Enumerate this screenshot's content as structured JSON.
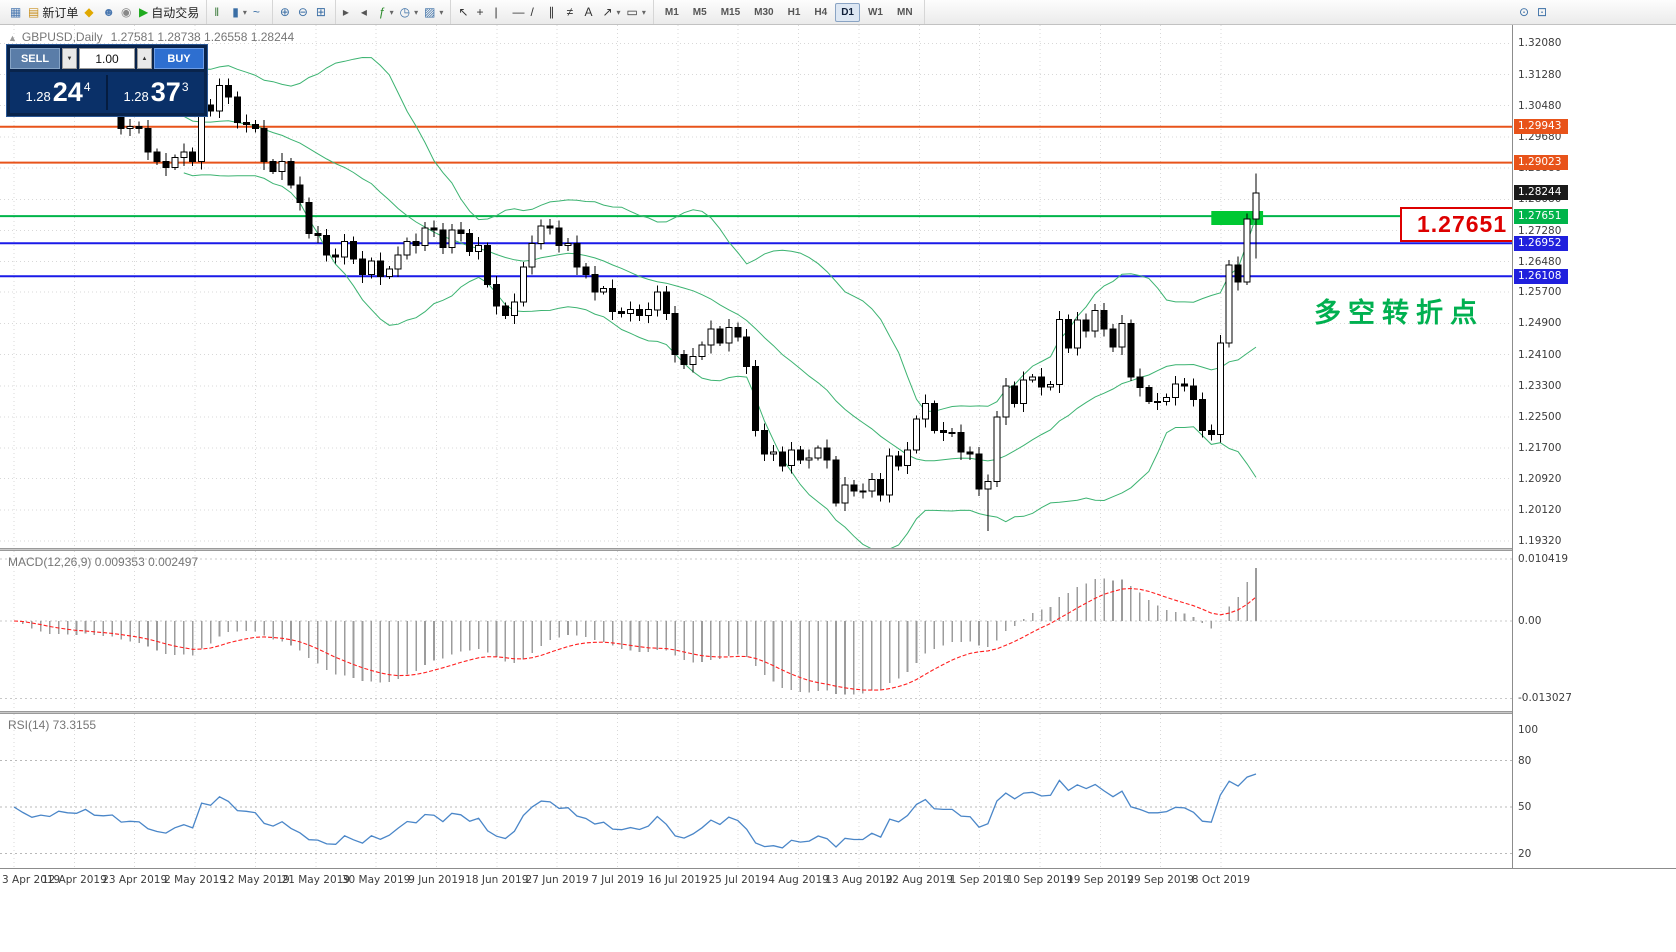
{
  "toolbar": {
    "caret_glyph": "▾",
    "timeframes": [
      "M1",
      "M5",
      "M15",
      "M30",
      "H1",
      "H4",
      "D1",
      "W1",
      "MN"
    ],
    "active_timeframe": "D1",
    "groups": [
      {
        "name": "standard-toolbar-group",
        "items": [
          {
            "name": "chart-window-icon",
            "glyph": "▦",
            "color": "#4a78b0",
            "interactable": false
          },
          {
            "name": "new-order-button",
            "glyph": "▤",
            "color": "#c89020",
            "label": "新订单"
          },
          {
            "name": "expert-advisors-button",
            "glyph": "◆",
            "color": "#e0a800"
          },
          {
            "name": "profiles-button",
            "glyph": "☻",
            "color": "#4a78b0"
          },
          {
            "name": "data-window-button",
            "glyph": "◉",
            "color": "#888888"
          },
          {
            "name": "autotrading-button",
            "glyph": "▶",
            "color": "#1faa1f",
            "label": "自动交易"
          }
        ]
      },
      {
        "name": "chart-type-group",
        "items": [
          {
            "name": "bar-chart-button",
            "glyph": "‖",
            "color": "#3a7a3a"
          },
          {
            "name": "candlestick-chart-button",
            "glyph": "▮",
            "color": "#3a6ea5",
            "caret": true
          },
          {
            "name": "line-chart-button",
            "glyph": "~",
            "color": "#3a6ea5"
          }
        ]
      },
      {
        "name": "zoom-group",
        "items": [
          {
            "name": "zoom-in-button",
            "glyph": "⊕",
            "color": "#3a6ea5"
          },
          {
            "name": "zoom-out-button",
            "glyph": "⊖",
            "color": "#3a6ea5"
          },
          {
            "name": "tile-windows-button",
            "glyph": "⊞",
            "color": "#3a6ea5"
          }
        ]
      },
      {
        "name": "chart-tools-group",
        "items": [
          {
            "name": "auto-scroll-button",
            "glyph": "▸",
            "color": "#555555"
          },
          {
            "name": "chart-shift-button",
            "glyph": "◂",
            "color": "#555555"
          },
          {
            "name": "indicators-button",
            "glyph": "ƒ",
            "color": "#2a8a2a",
            "caret": true
          },
          {
            "name": "periods-button",
            "glyph": "◷",
            "color": "#3a6ea5",
            "caret": true
          },
          {
            "name": "templates-button",
            "glyph": "▨",
            "color": "#3a6ea5",
            "caret": true
          }
        ]
      },
      {
        "name": "line-studies-group",
        "items": [
          {
            "name": "cursor-button",
            "glyph": "↖",
            "color": "#333333"
          },
          {
            "name": "crosshair-button",
            "glyph": "+",
            "color": "#333333"
          },
          {
            "name": "vertical-line-button",
            "glyph": "|",
            "color": "#333333"
          },
          {
            "name": "horizontal-line-button",
            "glyph": "—",
            "color": "#333333"
          },
          {
            "name": "trendline-button",
            "glyph": "/",
            "color": "#333333"
          },
          {
            "name": "equidistant-channel-button",
            "glyph": "∥",
            "color": "#333333"
          },
          {
            "name": "fibonacci-button",
            "glyph": "≠",
            "color": "#333333"
          },
          {
            "name": "text-label-button",
            "glyph": "A",
            "color": "#333333"
          },
          {
            "name": "arrow-objects-button",
            "glyph": "↗",
            "color": "#333333",
            "caret": true
          },
          {
            "name": "shapes-button",
            "glyph": "▭",
            "color": "#333333",
            "caret": true
          }
        ]
      }
    ],
    "right_items": [
      {
        "name": "search-button",
        "glyph": "⊙",
        "color": "#3a6ea5"
      },
      {
        "name": "new-chart-button",
        "glyph": "⊡",
        "color": "#3a6ea5"
      }
    ]
  },
  "chart": {
    "collapse_glyph": "▲",
    "symbol_title": "GBPUSD,Daily",
    "ohlc_text": "1.27581 1.28738 1.26558 1.28244",
    "annotation_text": "多空转折点",
    "price_label_box": "1.27651",
    "trade_panel": {
      "sell_label": "SELL",
      "buy_label": "BUY",
      "volume": "1.00",
      "spin_down_glyph": "▼",
      "spin_up_glyph": "▲",
      "sell_prefix": "1.28",
      "sell_main": "24",
      "sell_sup": "4",
      "buy_prefix": "1.28",
      "buy_main": "37",
      "buy_sup": "3"
    },
    "hlines": [
      {
        "value": 1.29943,
        "color": "#e8531a",
        "name": "resistance-line-129943"
      },
      {
        "value": 1.29023,
        "color": "#e8531a",
        "name": "resistance-line-129023"
      },
      {
        "value": 1.27651,
        "color": "#00b44a",
        "name": "pivot-line-127651"
      },
      {
        "value": 1.26952,
        "color": "#1a1ae8",
        "name": "support-line-126952"
      },
      {
        "value": 1.26108,
        "color": "#1a1ae8",
        "name": "support-line-126108"
      }
    ],
    "highlight_rect": {
      "i1": 134,
      "i2": 139.8,
      "price_top": 1.2778,
      "price_bottom": 1.2742,
      "color": "#00c832"
    },
    "price_axis": {
      "grid_labels": [
        "1.32080",
        "1.31280",
        "1.30480",
        "1.29680",
        "1.28880",
        "1.28080",
        "1.27280",
        "1.26480",
        "1.25700",
        "1.24900",
        "1.24100",
        "1.23300",
        "1.22500",
        "1.21700",
        "1.20920",
        "1.20120",
        "1.19320"
      ]
    },
    "price_tags": [
      {
        "text": "1.29943",
        "value": 1.29943,
        "color": "#e8531a",
        "name": "resistance-price-tag-1"
      },
      {
        "text": "1.29023",
        "value": 1.29023,
        "color": "#e8531a",
        "name": "resistance-price-tag-2"
      },
      {
        "text": "1.28244",
        "value": 1.28244,
        "color": "#1a1a1a",
        "name": "current-price-tag"
      },
      {
        "text": "1.27651",
        "value": 1.27651,
        "color": "#00b44a",
        "name": "pivot-price-tag"
      },
      {
        "text": "1.26952",
        "value": 1.26952,
        "color": "#2020dd",
        "name": "support-price-tag-1"
      },
      {
        "text": "1.26108",
        "value": 1.26108,
        "color": "#2020dd",
        "name": "support-price-tag-2"
      }
    ],
    "bollinger": {
      "period": 20,
      "deviation": 2
    },
    "colors": {
      "bull": "#ffffff",
      "bear": "#000000",
      "wick": "#000000",
      "bollinger": "#3cb371",
      "grid": "#d8d8d8"
    },
    "candles": {
      "closes": [
        1.3155,
        1.3095,
        1.304,
        1.306,
        1.3045,
        1.309,
        1.3075,
        1.307,
        1.31,
        1.305,
        1.3045,
        1.305,
        1.299,
        1.2995,
        1.299,
        1.293,
        1.2905,
        1.289,
        1.2915,
        1.293,
        1.2905,
        1.305,
        1.3035,
        1.31,
        1.307,
        1.3005,
        1.3,
        1.299,
        1.2905,
        1.288,
        1.2905,
        1.2845,
        1.28,
        1.272,
        1.2715,
        1.2665,
        1.266,
        1.27,
        1.2655,
        1.2615,
        1.265,
        1.261,
        1.263,
        1.2665,
        1.27,
        1.269,
        1.2735,
        1.273,
        1.2685,
        1.273,
        1.272,
        1.2675,
        1.269,
        1.259,
        1.2535,
        1.251,
        1.2545,
        1.2635,
        1.2695,
        1.274,
        1.2735,
        1.269,
        1.2695,
        1.2635,
        1.2615,
        1.257,
        1.258,
        1.252,
        1.2515,
        1.2525,
        1.251,
        1.2525,
        1.257,
        1.2515,
        1.241,
        1.2385,
        1.2405,
        1.2435,
        1.2475,
        1.244,
        1.248,
        1.2455,
        1.238,
        1.2215,
        1.2155,
        1.216,
        1.2125,
        1.2165,
        1.214,
        1.2145,
        1.217,
        1.214,
        1.203,
        1.2075,
        1.206,
        1.206,
        1.209,
        1.205,
        1.215,
        1.2125,
        1.2165,
        1.2245,
        1.2285,
        1.2215,
        1.221,
        1.221,
        1.216,
        1.2155,
        1.2065,
        1.2085,
        1.225,
        1.233,
        1.2285,
        1.2345,
        1.2353,
        1.2327,
        1.2333,
        1.25,
        1.2427,
        1.2499,
        1.247,
        1.2523,
        1.2475,
        1.243,
        1.249,
        1.2352,
        1.2325,
        1.229,
        1.229,
        1.23,
        1.2335,
        1.233,
        1.2295,
        1.2215,
        1.2205,
        1.244,
        1.264,
        1.2596,
        1.2758,
        1.28244
      ],
      "overrides": {
        "109": {
          "l": 1.1958
        },
        "138": {
          "h": 1.2772
        },
        "139": {
          "o": 1.27581,
          "h": 1.28738,
          "l": 1.26558,
          "c": 1.28244
        }
      }
    }
  },
  "macd": {
    "label": "MACD(12,26,9) 0.009353 0.002497",
    "fast": 12,
    "slow": 26,
    "signal": 9,
    "histogram_color": "#9c9c9c",
    "signal_color": "#ff2020",
    "axis_labels": [
      {
        "text": "0.010419",
        "value": 0.010419
      },
      {
        "text": "0.00",
        "value": 0
      },
      {
        "text": "-0.013027",
        "value": -0.013027
      }
    ]
  },
  "rsi": {
    "label": "RSI(14) 73.3155",
    "period": 14,
    "line_color": "#4a86c8",
    "levels": [
      80,
      50,
      20
    ],
    "axis_labels": [
      {
        "text": "100",
        "value": 100
      },
      {
        "text": "80",
        "value": 80
      },
      {
        "text": "50",
        "value": 50
      },
      {
        "text": "20",
        "value": 20
      }
    ]
  },
  "time_axis": [
    "3 Apr 2019",
    "12 Apr 2019",
    "23 Apr 2019",
    "2 May 2019",
    "12 May 2019",
    "21 May 2019",
    "30 May 2019",
    "9 Jun 2019",
    "18 Jun 2019",
    "27 Jun 2019",
    "7 Jul 2019",
    "16 Jul 2019",
    "25 Jul 2019",
    "4 Aug 2019",
    "13 Aug 2019",
    "22 Aug 2019",
    "1 Sep 2019",
    "10 Sep 2019",
    "19 Sep 2019",
    "29 Sep 2019",
    "8 Oct 2019"
  ]
}
